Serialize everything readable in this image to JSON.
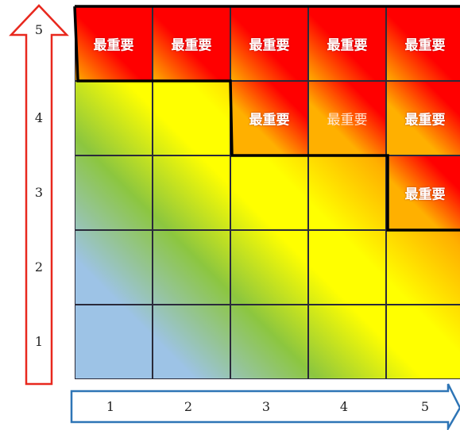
{
  "matrix": {
    "cell_label": "最重要",
    "highlighted_cells": [
      {
        "col": 1,
        "row": 5,
        "faint": false
      },
      {
        "col": 2,
        "row": 5,
        "faint": false
      },
      {
        "col": 3,
        "row": 5,
        "faint": false
      },
      {
        "col": 4,
        "row": 5,
        "faint": false
      },
      {
        "col": 5,
        "row": 5,
        "faint": false
      },
      {
        "col": 3,
        "row": 4,
        "faint": false
      },
      {
        "col": 4,
        "row": 4,
        "faint": true
      },
      {
        "col": 5,
        "row": 4,
        "faint": false
      },
      {
        "col": 5,
        "row": 3,
        "faint": false
      }
    ],
    "x_ticks": [
      "1",
      "2",
      "3",
      "4",
      "5"
    ],
    "y_ticks": [
      "1",
      "2",
      "3",
      "4",
      "5"
    ],
    "colors": {
      "red": "#ff0000",
      "orange": "#ffb000",
      "yellow": "#ffff00",
      "green": "#8cc63f",
      "blue": "#9dc3e6",
      "x_arrow_outline": "#2e75b6",
      "y_arrow_outline": "#e8281e",
      "boundary_line": "#000000"
    }
  }
}
